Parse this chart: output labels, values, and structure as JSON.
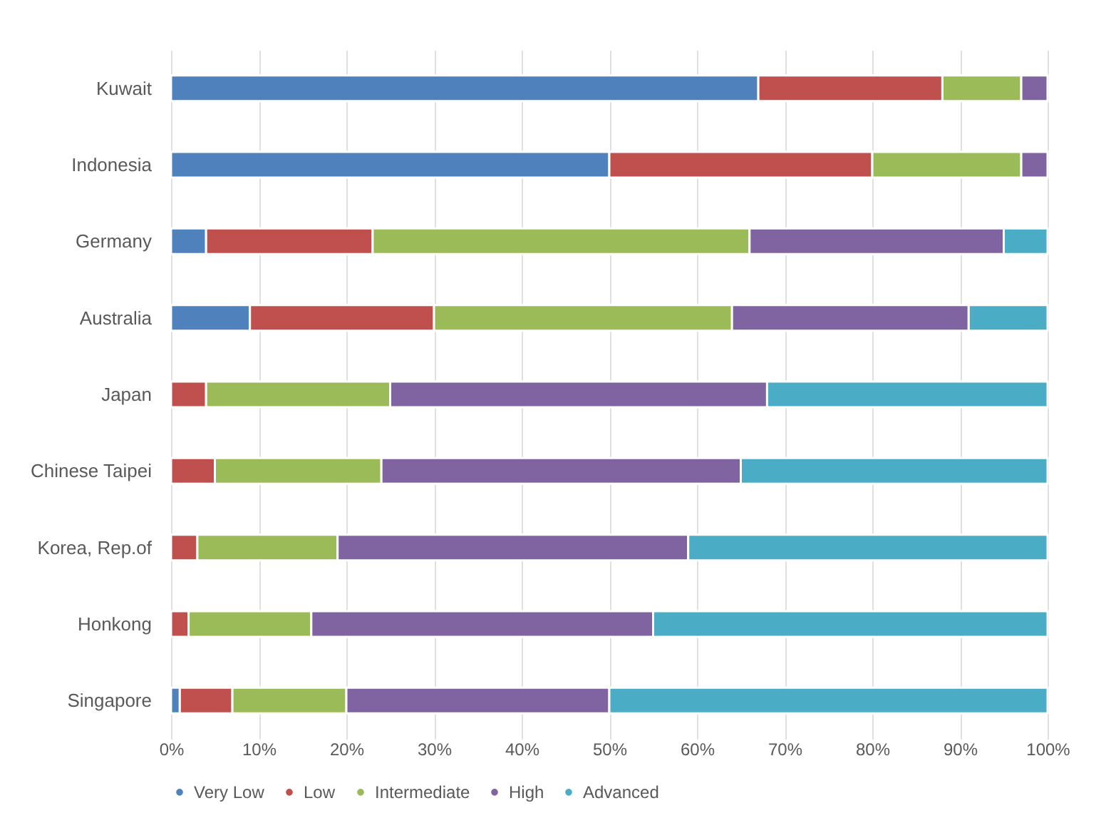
{
  "chart_data": {
    "type": "bar",
    "orientation": "horizontal",
    "stacked": true,
    "categories": [
      "Kuwait",
      "Indonesia",
      "Germany",
      "Australia",
      "Japan",
      "Chinese Taipei",
      "Korea, Rep.of",
      "Honkong",
      "Singapore"
    ],
    "series": [
      {
        "name": "Very Low",
        "color": "#4f81bd",
        "values": [
          67,
          50,
          4,
          9,
          null,
          null,
          null,
          null,
          1
        ]
      },
      {
        "name": "Low",
        "color": "#c0504d",
        "values": [
          21,
          30,
          19,
          21,
          4,
          5,
          3,
          2,
          6
        ]
      },
      {
        "name": "Intermediate",
        "color": "#9bbb59",
        "values": [
          9,
          17,
          43,
          34,
          21,
          19,
          16,
          14,
          13
        ]
      },
      {
        "name": "High",
        "color": "#8064a2",
        "values": [
          3,
          3,
          29,
          27,
          43,
          41,
          40,
          39,
          30
        ]
      },
      {
        "name": "Advanced",
        "color": "#4bacc6",
        "values": [
          null,
          null,
          5,
          9,
          32,
          35,
          41,
          45,
          50
        ]
      }
    ],
    "xlim": [
      0,
      100
    ],
    "xticks": [
      {
        "value": 0,
        "label": "0%"
      },
      {
        "value": 10,
        "label": "10%"
      },
      {
        "value": 20,
        "label": "20%"
      },
      {
        "value": 30,
        "label": "30%"
      },
      {
        "value": 40,
        "label": "40%"
      },
      {
        "value": 50,
        "label": "50%"
      },
      {
        "value": 60,
        "label": "60%"
      },
      {
        "value": 70,
        "label": "70%"
      },
      {
        "value": 80,
        "label": "80%"
      },
      {
        "value": 90,
        "label": "90%"
      },
      {
        "value": 100,
        "label": "100%"
      }
    ],
    "grid": "x",
    "legend": "bottom"
  }
}
